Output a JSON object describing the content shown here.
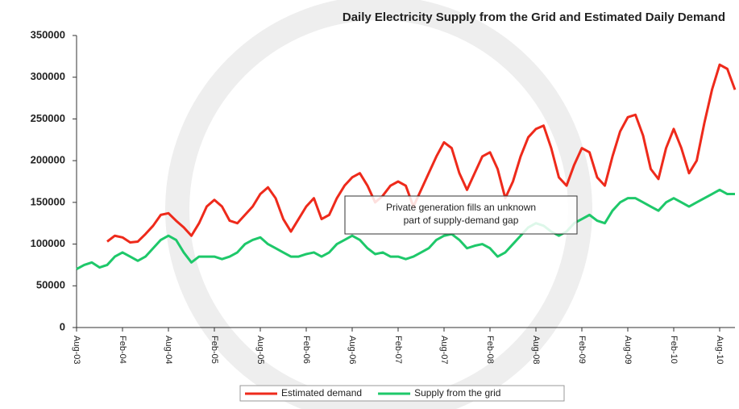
{
  "chart_data": {
    "type": "line",
    "title": "Daily Electricity Supply from the Grid and Estimated Daily Demand",
    "annotation": [
      "Private generation fills an unknown",
      "part of supply-demand gap"
    ],
    "categories": [
      "Aug-03",
      null,
      null,
      null,
      null,
      null,
      "Feb-04",
      null,
      null,
      null,
      null,
      null,
      "Aug-04",
      null,
      null,
      null,
      null,
      null,
      "Feb-05",
      null,
      null,
      null,
      null,
      null,
      "Aug-05",
      null,
      null,
      null,
      null,
      null,
      "Feb-06",
      null,
      null,
      null,
      null,
      null,
      "Aug-06",
      null,
      null,
      null,
      null,
      null,
      "Feb-07",
      null,
      null,
      null,
      null,
      null,
      "Aug-07",
      null,
      null,
      null,
      null,
      null,
      "Feb-08",
      null,
      null,
      null,
      null,
      null,
      "Aug-08",
      null,
      null,
      null,
      null,
      null,
      "Feb-09",
      null,
      null,
      null,
      null,
      null,
      "Aug-09",
      null,
      null,
      null,
      null,
      null,
      "Feb-10",
      null,
      null,
      null,
      null,
      null,
      "Aug-10",
      null,
      null
    ],
    "series": [
      {
        "name": "Estimated demand",
        "color": "#ee2a1b",
        "values": [
          null,
          null,
          null,
          null,
          103000,
          110000,
          108000,
          102000,
          103000,
          112000,
          122000,
          135000,
          137000,
          128000,
          120000,
          110000,
          125000,
          145000,
          153000,
          145000,
          128000,
          125000,
          135000,
          145000,
          160000,
          168000,
          155000,
          130000,
          115000,
          130000,
          145000,
          155000,
          130000,
          135000,
          155000,
          170000,
          180000,
          185000,
          170000,
          150000,
          158000,
          170000,
          175000,
          170000,
          145000,
          165000,
          185000,
          205000,
          222000,
          215000,
          185000,
          165000,
          185000,
          205000,
          210000,
          190000,
          155000,
          175000,
          205000,
          228000,
          238000,
          242000,
          215000,
          180000,
          170000,
          195000,
          215000,
          210000,
          180000,
          170000,
          205000,
          235000,
          252000,
          255000,
          230000,
          190000,
          178000,
          215000,
          238000,
          215000,
          185000,
          200000,
          245000,
          285000,
          315000,
          310000,
          285000
        ]
      },
      {
        "name": "Supply from the grid",
        "color": "#1ec86a",
        "values": [
          70000,
          75000,
          78000,
          72000,
          75000,
          85000,
          90000,
          85000,
          80000,
          85000,
          95000,
          105000,
          110000,
          105000,
          90000,
          78000,
          85000,
          85000,
          85000,
          82000,
          85000,
          90000,
          100000,
          105000,
          108000,
          100000,
          95000,
          90000,
          85000,
          85000,
          88000,
          90000,
          85000,
          90000,
          100000,
          105000,
          110000,
          105000,
          95000,
          88000,
          90000,
          85000,
          85000,
          82000,
          85000,
          90000,
          95000,
          105000,
          110000,
          112000,
          105000,
          95000,
          98000,
          100000,
          95000,
          85000,
          90000,
          100000,
          110000,
          120000,
          125000,
          122000,
          115000,
          110000,
          115000,
          125000,
          130000,
          135000,
          128000,
          125000,
          140000,
          150000,
          155000,
          155000,
          150000,
          145000,
          140000,
          150000,
          155000,
          150000,
          145000,
          150000,
          155000,
          160000,
          165000,
          160000,
          160000
        ]
      }
    ],
    "ylim": [
      0,
      350000
    ],
    "yticks": [
      0,
      50000,
      100000,
      150000,
      200000,
      250000,
      300000,
      350000
    ],
    "grid": false,
    "legend": "bottom"
  }
}
